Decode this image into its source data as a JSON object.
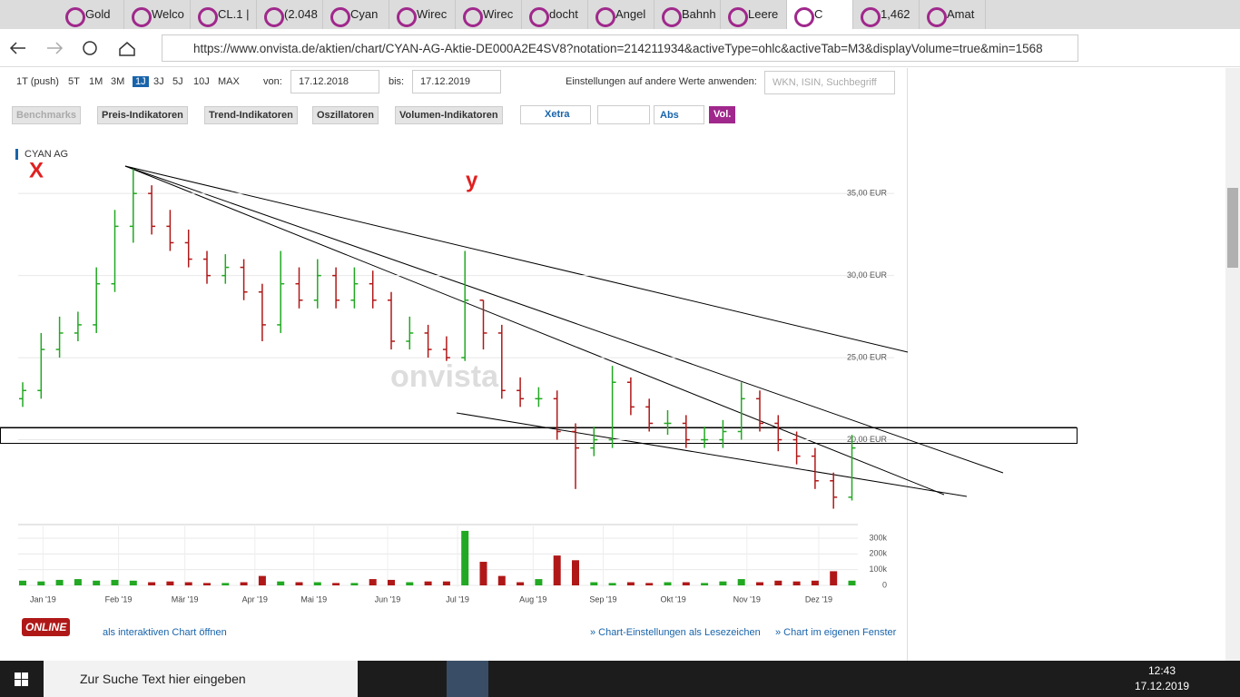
{
  "tabs": [
    "Gold",
    "Welco",
    "CL.1 |",
    "(2.048",
    "Cyan",
    "Wirec",
    "Wirec",
    "docht",
    "Angel",
    "Bahnh",
    "Leere",
    "C",
    "1,462",
    "Amat"
  ],
  "address": {
    "url": "https://www.onvista.de/aktien/chart/CYAN-AG-Aktie-DE000A2E4SV8?notation=214211934&activeType=ohlc&activeTab=M3&displayVolume=true&min=1568"
  },
  "toolbar": {
    "ranges": [
      "1T (push)",
      "5T",
      "1M",
      "3M",
      "1J",
      "3J",
      "5J",
      "10J",
      "MAX"
    ],
    "active_range": 4,
    "from_label": "von:",
    "from": "17.12.2018",
    "to_label": "bis:",
    "to": "17.12.2019",
    "apply_label": "Einstellungen auf andere Werte anwenden:",
    "search_placeholder": "WKN, ISIN, Suchbegriff"
  },
  "buttons": [
    "Benchmarks",
    "Preis-Indikatoren",
    "Trend-Indikatoren",
    "Oszillatoren",
    "Volumen-Indikatoren"
  ],
  "exchange": "Xetra",
  "mode": "Abs",
  "vol": "Vol.",
  "chart_data": {
    "type": "ohlc",
    "title": "CYAN AG",
    "annotations": [
      "X",
      "y"
    ],
    "watermark": "onvista",
    "open": [
      22.5,
      23,
      25.5,
      26.5,
      27,
      29.5,
      33,
      35,
      33,
      32,
      31,
      30,
      30.5,
      29,
      27,
      29.5,
      28.5,
      30,
      28.5,
      29.5,
      28.5,
      26,
      26.5,
      25.5,
      25,
      28.5,
      26.5,
      23,
      22.5,
      22.5,
      20.5,
      19.5,
      20,
      23.5,
      22,
      21,
      21,
      20,
      20,
      20.5,
      22.5,
      21,
      20,
      19,
      17.5,
      16.5
    ],
    "close": [
      23,
      25.5,
      26.5,
      27,
      29.5,
      33,
      35,
      33,
      32,
      31,
      30,
      30.5,
      29,
      27,
      29.5,
      28.5,
      30,
      28.5,
      29.5,
      28.5,
      26,
      26.5,
      25.5,
      25,
      28.5,
      26.5,
      23,
      22.5,
      22.5,
      20.5,
      19.5,
      20,
      23.5,
      22,
      21,
      21,
      20,
      20,
      20.5,
      22.5,
      21,
      20,
      19,
      17.5,
      16.5,
      19.5
    ],
    "high": [
      23.5,
      26.5,
      27.5,
      27.8,
      30.5,
      34,
      36.5,
      35.5,
      34,
      32.8,
      31.5,
      31.3,
      31,
      29.5,
      31.5,
      30.5,
      31,
      30.5,
      30.5,
      30.3,
      29,
      27.5,
      27,
      26.3,
      31.5,
      28.5,
      27,
      23.8,
      23.2,
      23,
      21,
      20.8,
      24.5,
      23.8,
      22.5,
      21.8,
      21.5,
      20.8,
      21.2,
      23.5,
      23,
      21.5,
      20.5,
      19.5,
      18,
      20.3
    ],
    "low": [
      22,
      22.5,
      25,
      26,
      26.5,
      29,
      32,
      32.5,
      31.5,
      30.5,
      29.5,
      29.5,
      28.5,
      26,
      26.5,
      28,
      28,
      28,
      28,
      28,
      25.5,
      25.5,
      25,
      24.8,
      24.8,
      25.5,
      22.5,
      22,
      22,
      20,
      17,
      19,
      19.5,
      21.5,
      20.5,
      20.3,
      19.5,
      19.5,
      19.5,
      20,
      20.5,
      19.3,
      18.5,
      17,
      15.8,
      16.3
    ],
    "volume": [
      30000,
      25000,
      35000,
      40000,
      30000,
      35000,
      30000,
      20000,
      25000,
      20000,
      15000,
      15000,
      20000,
      60000,
      25000,
      20000,
      20000,
      15000,
      15000,
      40000,
      35000,
      20000,
      25000,
      25000,
      347000,
      150000,
      60000,
      20000,
      40000,
      190000,
      160000,
      20000,
      15000,
      20000,
      15000,
      20000,
      20000,
      15000,
      25000,
      40000,
      20000,
      30000,
      25000,
      30000,
      90000,
      30000
    ],
    "xticks": [
      {
        "value": 1.1,
        "label": "Jan '19"
      },
      {
        "value": 5.2,
        "label": "Feb '19"
      },
      {
        "value": 8.8,
        "label": "Mär '19"
      },
      {
        "value": 12.6,
        "label": "Apr '19"
      },
      {
        "value": 15.8,
        "label": "Mai '19"
      },
      {
        "value": 19.8,
        "label": "Jun '19"
      },
      {
        "value": 23.6,
        "label": "Jul '19"
      },
      {
        "value": 27.7,
        "label": "Aug '19"
      },
      {
        "value": 31.5,
        "label": "Sep '19"
      },
      {
        "value": 35.3,
        "label": "Okt '19"
      },
      {
        "value": 39.3,
        "label": "Nov '19"
      },
      {
        "value": 43.2,
        "label": "Dez '19"
      }
    ],
    "ylim": [
      15,
      37
    ],
    "yticks": [
      {
        "value": 20,
        "label": "20,00 EUR"
      },
      {
        "value": 25,
        "label": "25,00 EUR"
      },
      {
        "value": 30,
        "label": "30,00 EUR"
      },
      {
        "value": 35,
        "label": "35,00 EUR"
      }
    ],
    "y2lim": [
      0,
      387000
    ],
    "y2ticks": [
      0,
      {
        "value": 100000,
        "label": "100k"
      },
      {
        "value": 200000,
        "label": "200k"
      },
      {
        "value": 300000,
        "label": "300k"
      }
    ],
    "up_color": "#22a822",
    "down_color": "#b01818",
    "grid": true
  },
  "footer": {
    "logo": "ONLINE",
    "open_link": "als interaktiven Chart öffnen",
    "bookmark": "» Chart-Einstellungen als Lesezeichen",
    "window": "» Chart im eigenen Fenster"
  },
  "taskbar": {
    "search": "Zur Suche Text hier eingeben",
    "time": "12:43",
    "date": "17.12.2019"
  }
}
